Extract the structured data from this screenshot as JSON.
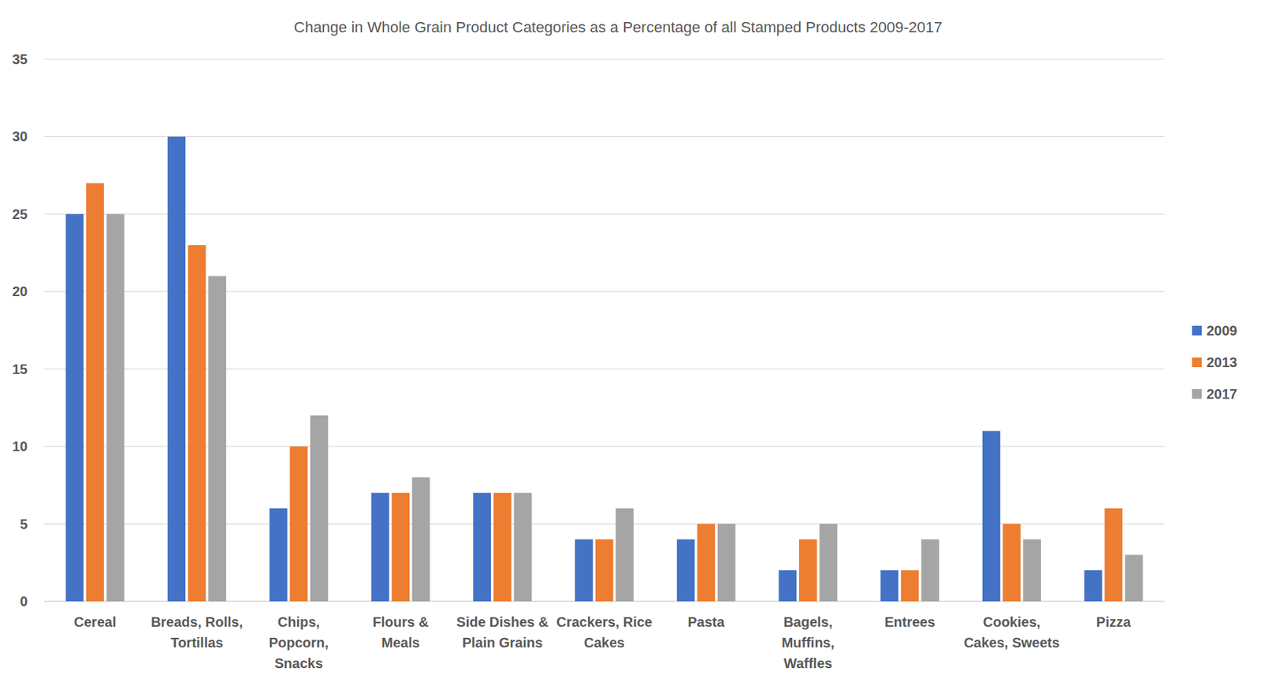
{
  "chart_data": {
    "type": "bar",
    "title": "Change in Whole Grain Product Categories as a Percentage of all Stamped Products 2009-2017",
    "categories": [
      "Cereal",
      "Breads, Rolls, Tortillas",
      "Chips, Popcorn, Snacks",
      "Flours & Meals",
      "Side Dishes & Plain Grains",
      "Crackers, Rice Cakes",
      "Pasta",
      "Bagels, Muffins, Waffles",
      "Entrees",
      "Cookies, Cakes, Sweets",
      "Pizza"
    ],
    "series": [
      {
        "name": "2009",
        "color": "#4472c4",
        "values": [
          25,
          30,
          6,
          7,
          7,
          4,
          4,
          2,
          2,
          11,
          2
        ]
      },
      {
        "name": "2013",
        "color": "#ed7d31",
        "values": [
          27,
          23,
          10,
          7,
          7,
          4,
          5,
          4,
          2,
          5,
          6
        ]
      },
      {
        "name": "2017",
        "color": "#a5a5a5",
        "values": [
          25,
          21,
          12,
          8,
          7,
          6,
          5,
          5,
          4,
          4,
          3
        ]
      }
    ],
    "ylim": [
      0,
      35
    ],
    "yticks": [
      0,
      5,
      10,
      15,
      20,
      25,
      30,
      35
    ],
    "grid": true,
    "legend": "right"
  }
}
